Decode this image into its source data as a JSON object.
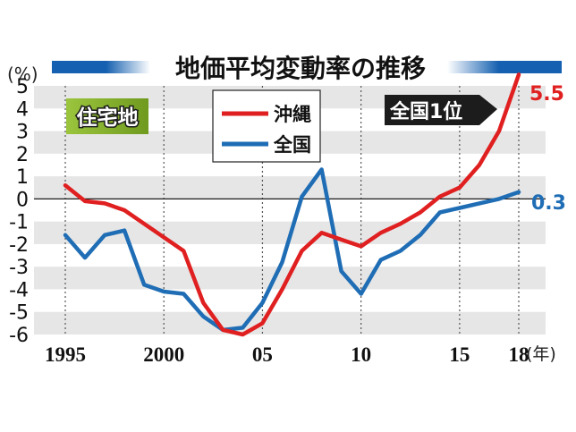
{
  "chart_data": {
    "type": "line",
    "title": "地価平均変動率の推移",
    "category_label": "住宅地",
    "unit_label": "(%)",
    "x_unit_label": "(年)",
    "x_tick_labels": [
      "1995",
      "2000",
      "05",
      "10",
      "15",
      "18"
    ],
    "x_ticks": [
      1995,
      2000,
      2005,
      2010,
      2015,
      2018
    ],
    "xlim": [
      1995,
      2018
    ],
    "ylim": [
      -6,
      5
    ],
    "y_ticks": [
      5,
      4,
      3,
      2,
      1,
      0,
      -1,
      -2,
      -3,
      -4,
      -5,
      -6
    ],
    "y_tick_labels": [
      "5",
      "4",
      "3",
      "2",
      "1",
      "0",
      "-1",
      "-2",
      "-3",
      "-4",
      "-5",
      "-6"
    ],
    "grid": "alternating horizontal bands; dotted vertical lines at labeled years",
    "legend_position": "top-center",
    "series": [
      {
        "name": "沖縄",
        "color": "#e02020",
        "x": [
          1995,
          1996,
          1997,
          1998,
          1999,
          2000,
          2001,
          2002,
          2003,
          2004,
          2005,
          2006,
          2007,
          2008,
          2009,
          2010,
          2011,
          2012,
          2013,
          2014,
          2015,
          2016,
          2017,
          2018
        ],
        "values": [
          0.6,
          -0.1,
          -0.2,
          -0.5,
          -1.1,
          -1.7,
          -2.3,
          -4.6,
          -5.8,
          -6.0,
          -5.5,
          -4.0,
          -2.3,
          -1.5,
          -1.8,
          -2.1,
          -1.5,
          -1.1,
          -0.6,
          0.1,
          0.5,
          1.5,
          3.0,
          5.5
        ],
        "end_label": "5.5",
        "annotation": "全国1位"
      },
      {
        "name": "全国",
        "color": "#1f6db5",
        "x": [
          1995,
          1996,
          1997,
          1998,
          1999,
          2000,
          2001,
          2002,
          2003,
          2004,
          2005,
          2006,
          2007,
          2008,
          2009,
          2010,
          2011,
          2012,
          2013,
          2014,
          2015,
          2016,
          2017,
          2018
        ],
        "values": [
          -1.6,
          -2.6,
          -1.6,
          -1.4,
          -3.8,
          -4.1,
          -4.2,
          -5.2,
          -5.8,
          -5.7,
          -4.6,
          -2.8,
          0.1,
          1.3,
          -3.2,
          -4.2,
          -2.7,
          -2.3,
          -1.6,
          -0.6,
          -0.4,
          -0.2,
          0.0,
          0.3
        ],
        "end_label": "0.3"
      }
    ]
  }
}
